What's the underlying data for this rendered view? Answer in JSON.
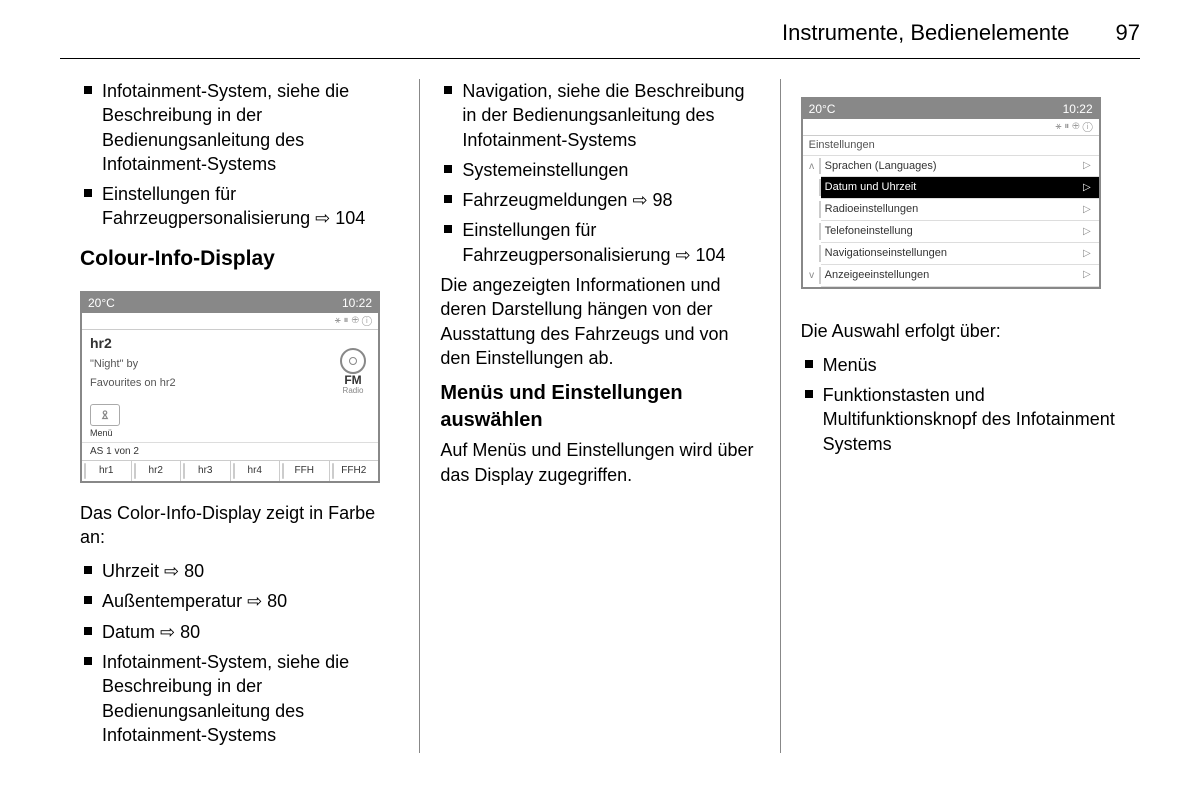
{
  "header": {
    "title": "Instrumente, Bedienelemente",
    "page": "97"
  },
  "col1": {
    "top_items": [
      "Infotainment-System, siehe die Beschreibung in der Bedienungsanleitung des Infotainment-Systems",
      "Einstellungen für Fahrzeugpersonalisierung ⇨ 104"
    ],
    "heading": "Colour-Info-Display",
    "display": {
      "temp": "20°C",
      "time": "10:22",
      "icons": "⚹  ⏸  ⊕  ⓘ",
      "station": "hr2",
      "line1": "\"Night\" by",
      "line2": "Favourites on hr2",
      "fm_label": "FM",
      "fm_sub": "Radio",
      "menu_label": "Menü",
      "as": "AS 1 von 2",
      "tabs": [
        "hr1",
        "hr2",
        "hr3",
        "hr4",
        "FFH",
        "FFH2"
      ]
    },
    "after": "Das Color-Info-Display zeigt in Farbe an:",
    "bullets": [
      "Uhrzeit ⇨ 80",
      "Außentemperatur ⇨ 80",
      "Datum ⇨ 80",
      "Infotainment-System, siehe die Beschreibung in der Bedienungsanleitung des Infotainment-Systems"
    ]
  },
  "col2": {
    "bullets": [
      "Navigation, siehe die Beschreibung in der Bedienungsanleitung des Infotainment-Systems",
      "Systemeinstellungen",
      "Fahrzeugmeldungen ⇨ 98",
      "Einstellungen für Fahrzeugpersonalisierung ⇨ 104"
    ],
    "para1": "Die angezeigten Informationen und deren Darstellung hängen von der Ausstattung des Fahrzeugs und von den Einstellungen ab.",
    "heading": "Menüs und Einstellungen auswählen",
    "para2": "Auf Menüs und Einstellungen wird über das Display zugegriffen."
  },
  "col3": {
    "display": {
      "temp": "20°C",
      "time": "10:22",
      "icons": "⚹  ⏸  ⊕  ⓘ",
      "title": "Einstellungen",
      "items": [
        {
          "label": "Sprachen (Languages)",
          "sel": false
        },
        {
          "label": "Datum und Uhrzeit",
          "sel": true
        },
        {
          "label": "Radioeinstellungen",
          "sel": false
        },
        {
          "label": "Telefoneinstellung",
          "sel": false
        },
        {
          "label": "Navigationseinstellungen",
          "sel": false
        },
        {
          "label": "Anzeigeeinstellungen",
          "sel": false
        }
      ]
    },
    "after": "Die Auswahl erfolgt über:",
    "bullets": [
      "Menüs",
      "Funktionstasten und Multifunktionsknopf des Infotainment Systems"
    ]
  }
}
